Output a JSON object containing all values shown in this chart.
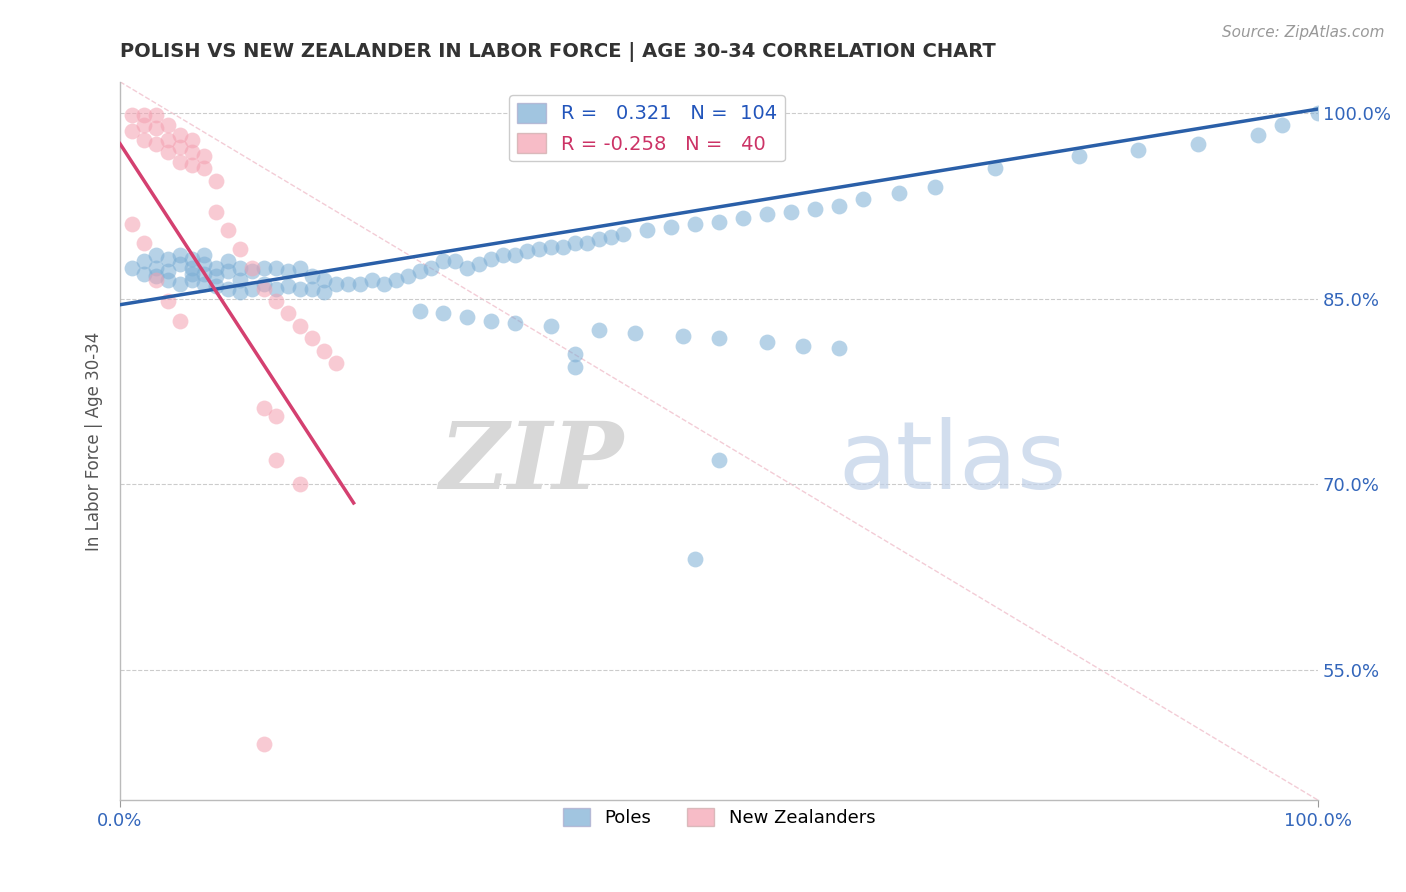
{
  "title": "POLISH VS NEW ZEALANDER IN LABOR FORCE | AGE 30-34 CORRELATION CHART",
  "source_text": "Source: ZipAtlas.com",
  "ylabel": "In Labor Force | Age 30-34",
  "xmin": 0.0,
  "xmax": 1.0,
  "ymin": 0.445,
  "ymax": 1.025,
  "xtick_labels": [
    "0.0%",
    "100.0%"
  ],
  "ytick_positions": [
    0.55,
    0.7,
    0.85,
    1.0
  ],
  "ytick_labels": [
    "55.0%",
    "70.0%",
    "85.0%",
    "100.0%"
  ],
  "legend_r_blue": "0.321",
  "legend_n_blue": "104",
  "legend_r_pink": "-0.258",
  "legend_n_pink": "40",
  "blue_color": "#7aadd4",
  "pink_color": "#f4a0b0",
  "blue_line_color": "#2a5fa8",
  "pink_line_color": "#d44070",
  "watermark_zip": "ZIP",
  "watermark_atlas": "atlas",
  "blue_trend_x": [
    0.0,
    1.0
  ],
  "blue_trend_y": [
    0.845,
    1.003
  ],
  "pink_trend_x": [
    0.0,
    0.195
  ],
  "pink_trend_y": [
    0.975,
    0.685
  ],
  "diag_line_x": [
    0.0,
    1.0
  ],
  "diag_line_y": [
    1.025,
    0.445
  ],
  "blue_dots_x": [
    0.01,
    0.02,
    0.02,
    0.03,
    0.03,
    0.03,
    0.04,
    0.04,
    0.04,
    0.05,
    0.05,
    0.05,
    0.06,
    0.06,
    0.06,
    0.06,
    0.07,
    0.07,
    0.07,
    0.07,
    0.08,
    0.08,
    0.08,
    0.09,
    0.09,
    0.09,
    0.1,
    0.1,
    0.1,
    0.11,
    0.11,
    0.12,
    0.12,
    0.13,
    0.13,
    0.14,
    0.14,
    0.15,
    0.15,
    0.16,
    0.16,
    0.17,
    0.17,
    0.18,
    0.19,
    0.2,
    0.21,
    0.22,
    0.23,
    0.24,
    0.25,
    0.26,
    0.27,
    0.28,
    0.29,
    0.3,
    0.31,
    0.32,
    0.33,
    0.34,
    0.35,
    0.36,
    0.37,
    0.38,
    0.39,
    0.4,
    0.41,
    0.42,
    0.44,
    0.46,
    0.48,
    0.5,
    0.52,
    0.54,
    0.56,
    0.58,
    0.6,
    0.62,
    0.65,
    0.68,
    0.25,
    0.27,
    0.29,
    0.31,
    0.33,
    0.36,
    0.4,
    0.43,
    0.47,
    0.5,
    0.54,
    0.57,
    0.6,
    0.38,
    0.38,
    0.73,
    0.8,
    0.85,
    0.9,
    0.95,
    0.97,
    1.0,
    0.5,
    0.48
  ],
  "blue_dots_y": [
    0.875,
    0.88,
    0.87,
    0.875,
    0.885,
    0.868,
    0.872,
    0.882,
    0.865,
    0.878,
    0.885,
    0.862,
    0.875,
    0.882,
    0.87,
    0.865,
    0.878,
    0.885,
    0.87,
    0.862,
    0.875,
    0.868,
    0.86,
    0.872,
    0.88,
    0.858,
    0.875,
    0.865,
    0.855,
    0.872,
    0.858,
    0.875,
    0.862,
    0.875,
    0.858,
    0.872,
    0.86,
    0.875,
    0.858,
    0.868,
    0.858,
    0.865,
    0.855,
    0.862,
    0.862,
    0.862,
    0.865,
    0.862,
    0.865,
    0.868,
    0.872,
    0.875,
    0.88,
    0.88,
    0.875,
    0.878,
    0.882,
    0.885,
    0.885,
    0.888,
    0.89,
    0.892,
    0.892,
    0.895,
    0.895,
    0.898,
    0.9,
    0.902,
    0.905,
    0.908,
    0.91,
    0.912,
    0.915,
    0.918,
    0.92,
    0.922,
    0.925,
    0.93,
    0.935,
    0.94,
    0.84,
    0.838,
    0.835,
    0.832,
    0.83,
    0.828,
    0.825,
    0.822,
    0.82,
    0.818,
    0.815,
    0.812,
    0.81,
    0.805,
    0.795,
    0.955,
    0.965,
    0.97,
    0.975,
    0.982,
    0.99,
    1.0,
    0.72,
    0.64
  ],
  "pink_dots_x": [
    0.01,
    0.01,
    0.02,
    0.02,
    0.02,
    0.03,
    0.03,
    0.03,
    0.04,
    0.04,
    0.04,
    0.05,
    0.05,
    0.05,
    0.06,
    0.06,
    0.06,
    0.07,
    0.07,
    0.08,
    0.08,
    0.09,
    0.1,
    0.11,
    0.12,
    0.13,
    0.14,
    0.15,
    0.16,
    0.17,
    0.18,
    0.01,
    0.02,
    0.03,
    0.04,
    0.05,
    0.12,
    0.13,
    0.13,
    0.15
  ],
  "pink_dots_y": [
    0.998,
    0.985,
    0.998,
    0.99,
    0.978,
    0.998,
    0.988,
    0.975,
    0.99,
    0.978,
    0.968,
    0.982,
    0.972,
    0.96,
    0.978,
    0.968,
    0.958,
    0.965,
    0.955,
    0.945,
    0.92,
    0.905,
    0.89,
    0.875,
    0.858,
    0.848,
    0.838,
    0.828,
    0.818,
    0.808,
    0.798,
    0.91,
    0.895,
    0.865,
    0.848,
    0.832,
    0.762,
    0.755,
    0.72,
    0.7
  ],
  "pink_outlier_x": [
    0.12
  ],
  "pink_outlier_y": [
    0.49
  ]
}
